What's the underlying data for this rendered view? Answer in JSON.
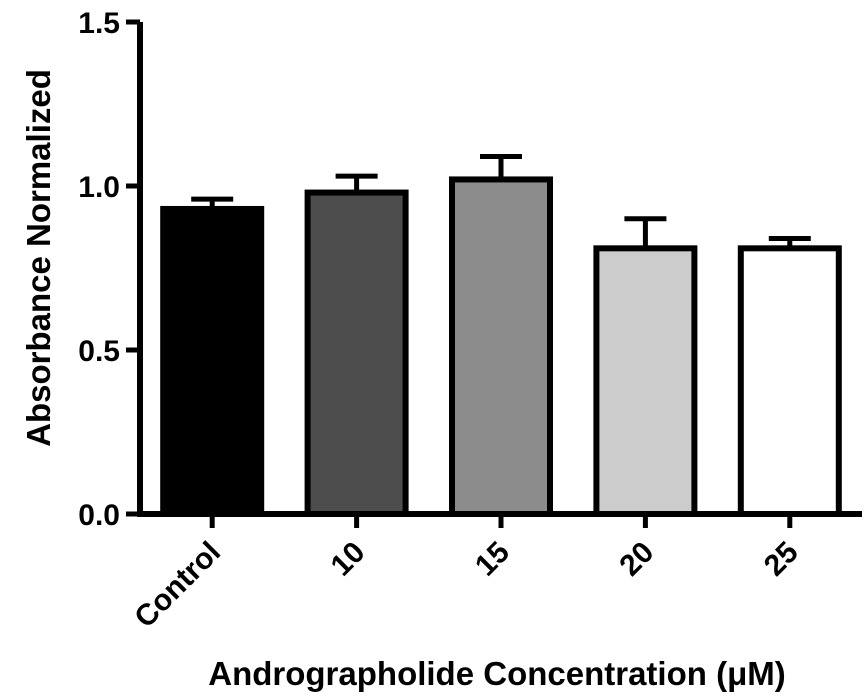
{
  "chart_data": {
    "type": "bar",
    "title": "",
    "xlabel": "Andrographolide Concentration (μM)",
    "ylabel": "Absorbance Normalized",
    "categories": [
      "Control",
      "10",
      "15",
      "20",
      "25"
    ],
    "values": [
      0.93,
      0.98,
      1.02,
      0.81,
      0.81
    ],
    "errors": [
      0.03,
      0.05,
      0.07,
      0.09,
      0.03
    ],
    "bar_colors": [
      "#000000",
      "#4d4d4d",
      "#8c8c8c",
      "#cccccc",
      "#ffffff"
    ],
    "ylim": [
      0,
      1.5
    ],
    "yticks": [
      0.0,
      0.5,
      1.0,
      1.5
    ],
    "ytick_labels": [
      "0.0",
      "0.5",
      "1.0",
      "1.5"
    ],
    "grid": false,
    "legend": "none"
  }
}
